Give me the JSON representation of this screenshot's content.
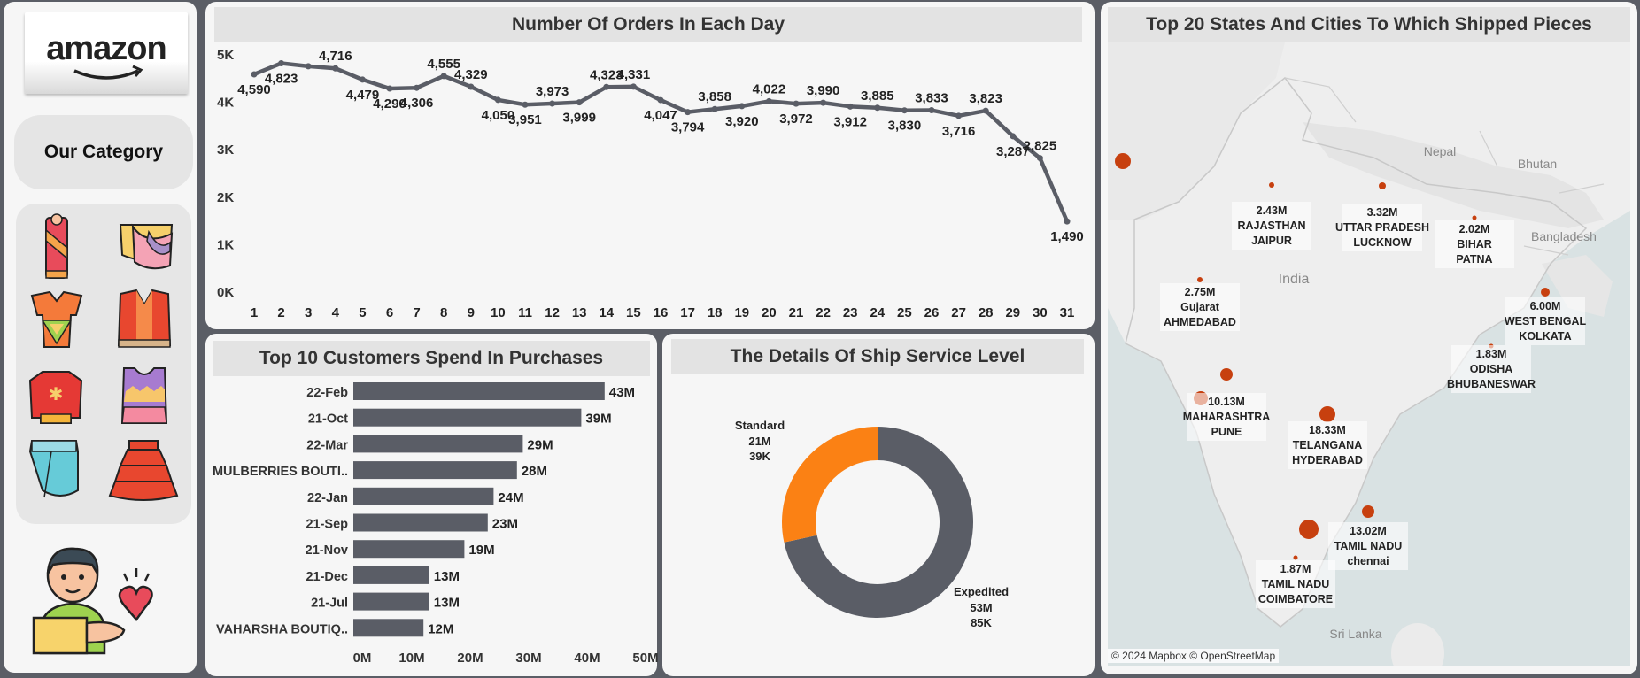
{
  "sidebar": {
    "logo_text": "amazon",
    "category_title": "Our Category",
    "category_icons": [
      "saree-icon",
      "blouse-icon",
      "kurta-icon",
      "vest-icon",
      "sweater-icon",
      "crop-top-icon",
      "skirt-icon",
      "ruffle-skirt-icon"
    ],
    "mascot_icon": "customer-love-icon"
  },
  "orders_chart": {
    "title": "Number Of Orders In Each Day",
    "chart_data": {
      "type": "line",
      "title": "Number Of Orders In Each Day",
      "x": [
        1,
        2,
        3,
        4,
        5,
        6,
        7,
        8,
        9,
        10,
        11,
        12,
        13,
        14,
        15,
        16,
        17,
        18,
        19,
        20,
        21,
        22,
        23,
        24,
        25,
        26,
        27,
        28,
        29,
        30,
        31
      ],
      "values": [
        4590,
        4823,
        4760,
        4716,
        4479,
        4290,
        4306,
        4555,
        4329,
        4050,
        3951,
        3973,
        3999,
        4323,
        4331,
        4047,
        3794,
        3858,
        3920,
        4022,
        3972,
        3990,
        3912,
        3885,
        3830,
        3833,
        3716,
        3823,
        3287,
        2825,
        1490
      ],
      "data_labels": [
        "4,590",
        "4,823",
        "",
        "4,716",
        "4,479",
        "4,290",
        "4,306",
        "4,555",
        "4,329",
        "4,050",
        "3,951",
        "3,973",
        "3,999",
        "4,323",
        "4,331",
        "4,047",
        "3,794",
        "3,858",
        "3,920",
        "4,022",
        "3,972",
        "3,990",
        "3,912",
        "3,885",
        "3,830",
        "3,833",
        "3,716",
        "3,823",
        "3,287",
        "2,825",
        "1,490"
      ],
      "label_pos": [
        "below",
        "below",
        "",
        "above",
        "below",
        "below",
        "below",
        "above",
        "above",
        "below",
        "below",
        "above",
        "below",
        "above",
        "above",
        "below",
        "below",
        "above",
        "below",
        "above",
        "below",
        "above",
        "below",
        "above",
        "below",
        "above",
        "below",
        "above",
        "below",
        "above",
        "below"
      ],
      "yticks": [
        "0K",
        "1K",
        "2K",
        "3K",
        "4K",
        "5K"
      ],
      "ylim": [
        0,
        5000
      ],
      "color": "#5a5d66"
    }
  },
  "customers_chart": {
    "title": "Top 10 Customers Spend In Purchases",
    "chart_data": {
      "type": "bar",
      "orientation": "horizontal",
      "categories": [
        "22-Feb",
        "21-Oct",
        "22-Mar",
        "MULBERRIES BOUTI..",
        "22-Jan",
        "21-Sep",
        "21-Nov",
        "21-Dec",
        "21-Jul",
        "VAHARSHA BOUTIQ.."
      ],
      "values": [
        43,
        39,
        29,
        28,
        24,
        23,
        19,
        13,
        13,
        12
      ],
      "value_labels": [
        "43M",
        "39M",
        "29M",
        "28M",
        "24M",
        "23M",
        "19M",
        "13M",
        "13M",
        "12M"
      ],
      "xticks": [
        "0M",
        "10M",
        "20M",
        "30M",
        "40M",
        "50M"
      ],
      "xlim": [
        0,
        50
      ],
      "color": "#5a5d66"
    }
  },
  "ship_chart": {
    "title": "The Details Of Ship Service Level",
    "chart_data": {
      "type": "pie",
      "variant": "donut",
      "categories": [
        "Expedited",
        "Standard"
      ],
      "values": [
        53,
        21
      ],
      "secondary": [
        "85K",
        "39K"
      ],
      "value_labels": [
        "53M",
        "21M"
      ],
      "colors": [
        "#5a5d66",
        "#fb8114"
      ]
    }
  },
  "map": {
    "title": "Top 20 States And Cities To Which Shipped Pieces",
    "country_labels": [
      "India",
      "Nepal",
      "Bhutan",
      "Bangladesh",
      "Sri Lanka"
    ],
    "attribution": "© 2024 Mapbox © OpenStreetMap",
    "points": [
      {
        "value": "2.43M",
        "state": "RAJASTHAN",
        "city": "JAIPUR"
      },
      {
        "value": "3.32M",
        "state": "UTTAR PRADESH",
        "city": "LUCKNOW"
      },
      {
        "value": "2.02M",
        "state": "BIHAR",
        "city": "PATNA"
      },
      {
        "value": "2.75M",
        "state": "Gujarat",
        "city": "AHMEDABAD"
      },
      {
        "value": "6.00M",
        "state": "WEST BENGAL",
        "city": "KOLKATA"
      },
      {
        "value": "1.83M",
        "state": "ODISHA",
        "city": "BHUBANESWAR"
      },
      {
        "value": "10.13M",
        "state": "MAHARASHTRA",
        "city": "PUNE"
      },
      {
        "value": "18.33M",
        "state": "TELANGANA",
        "city": "HYDERABAD"
      },
      {
        "value": "13.02M",
        "state": "TAMIL NADU",
        "city": "chennai"
      },
      {
        "value": "1.87M",
        "state": "TAMIL NADU",
        "city": "COIMBATORE"
      }
    ],
    "extra_points": [
      "delhi",
      "mumbai",
      "bengaluru"
    ],
    "point_color": "#c7400f"
  }
}
